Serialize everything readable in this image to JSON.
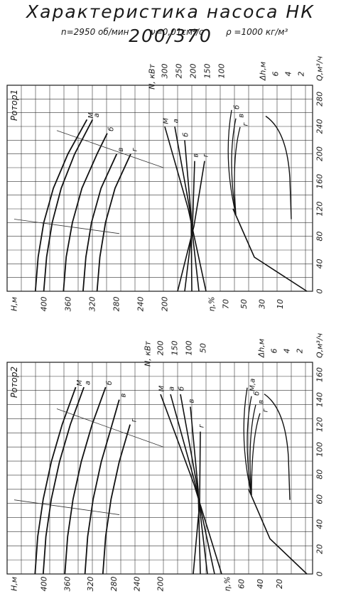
{
  "title": "Характеристика насоса НК 200/370",
  "params": {
    "n": "n=2950 об/мин",
    "nu": "ν=0,01см²/с",
    "rho": "ρ =1000 кг/м³"
  },
  "charts": [
    {
      "rotor": "Ротор1",
      "q_axis": {
        "label": "Q,м³/ч",
        "ticks": [
          "0",
          "40",
          "80",
          "120",
          "160",
          "200",
          "240",
          "280"
        ],
        "max": 300
      },
      "h_axis": {
        "label": "H,м",
        "ticks": [
          "400",
          "360",
          "320",
          "280",
          "240",
          "200"
        ]
      },
      "n_axis": {
        "label": "N, кВт",
        "ticks": [
          "300",
          "250",
          "200",
          "150",
          "100"
        ]
      },
      "eta_axis": {
        "label": "η,%",
        "ticks": [
          "70",
          "50",
          "30",
          "10"
        ]
      },
      "dh_axis": {
        "label": "Δh,м",
        "ticks": [
          "6",
          "4",
          "2"
        ]
      },
      "curve_labels": {
        "head": [
          "М",
          "а",
          "б",
          "в",
          "г"
        ],
        "power": [
          "М",
          "а",
          "б",
          "в",
          "г"
        ],
        "npsh": [
          "б",
          "в",
          "г"
        ]
      }
    },
    {
      "rotor": "Ротор2",
      "q_axis": {
        "label": "Q,м³/ч",
        "ticks": [
          "0",
          "20",
          "40",
          "60",
          "80",
          "100",
          "120",
          "140",
          "160"
        ],
        "max": 170
      },
      "h_axis": {
        "label": "H,м",
        "ticks": [
          "400",
          "360",
          "320",
          "280",
          "240",
          "200"
        ]
      },
      "n_axis": {
        "label": "N, кВт",
        "ticks": [
          "200",
          "150",
          "100",
          "50"
        ]
      },
      "eta_axis": {
        "label": "η,%",
        "ticks": [
          "60",
          "40",
          "20"
        ]
      },
      "dh_axis": {
        "label": "Δh,м",
        "ticks": [
          "6",
          "4",
          "2"
        ]
      },
      "curve_labels": {
        "head": [
          "М",
          "а",
          "б",
          "в",
          "г"
        ],
        "power": [
          "М",
          "а",
          "б",
          "в",
          "г"
        ],
        "npsh": [
          "М,а",
          "б",
          "в",
          "г"
        ]
      }
    }
  ],
  "chart_data": [
    {
      "type": "line",
      "title": "Ротор1",
      "xlabel": "Q,м³/ч",
      "xlim": [
        0,
        300
      ],
      "series": [
        {
          "name": "М",
          "x": [
            0,
            50,
            100,
            150,
            200,
            250
          ],
          "values": [
            410,
            405,
            395,
            378,
            352,
            318
          ]
        },
        {
          "name": "а",
          "x": [
            0,
            50,
            100,
            150,
            200,
            250
          ],
          "values": [
            395,
            390,
            380,
            364,
            340,
            308
          ]
        },
        {
          "name": "б",
          "x": [
            0,
            50,
            100,
            150,
            200,
            230
          ],
          "values": [
            360,
            355,
            344,
            327,
            300,
            282
          ]
        },
        {
          "name": "в",
          "x": [
            0,
            50,
            100,
            150,
            200
          ],
          "values": [
            325,
            320,
            310,
            293,
            265
          ]
        },
        {
          "name": "г",
          "x": [
            0,
            50,
            100,
            150,
            200
          ],
          "values": [
            300,
            295,
            285,
            268,
            240
          ]
        }
      ]
    },
    {
      "type": "line",
      "title": "Ротор2",
      "xlabel": "Q,м³/ч",
      "xlim": [
        0,
        170
      ],
      "series": [
        {
          "name": "М",
          "x": [
            0,
            30,
            60,
            90,
            120,
            150
          ],
          "values": [
            410,
            405,
            395,
            380,
            360,
            335
          ]
        },
        {
          "name": "а",
          "x": [
            0,
            30,
            60,
            90,
            120,
            150
          ],
          "values": [
            395,
            390,
            380,
            365,
            345,
            320
          ]
        },
        {
          "name": "б",
          "x": [
            0,
            30,
            60,
            90,
            120,
            150
          ],
          "values": [
            355,
            350,
            340,
            325,
            305,
            280
          ]
        },
        {
          "name": "в",
          "x": [
            0,
            30,
            60,
            90,
            120,
            140
          ],
          "values": [
            318,
            313,
            303,
            288,
            268,
            255
          ]
        },
        {
          "name": "г",
          "x": [
            0,
            30,
            60,
            90,
            120
          ],
          "values": [
            285,
            280,
            270,
            255,
            235
          ]
        }
      ]
    }
  ]
}
